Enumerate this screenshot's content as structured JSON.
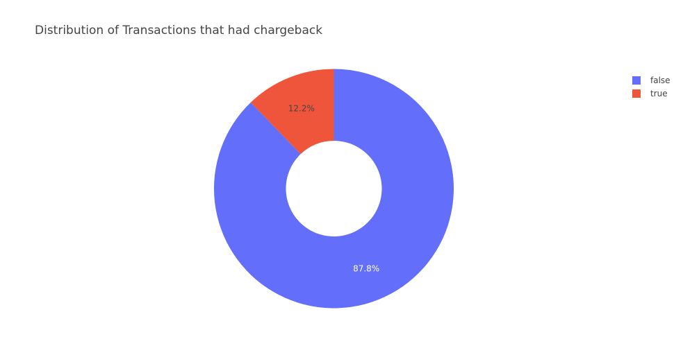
{
  "chart_data": {
    "type": "pie",
    "hole": true,
    "title": "Distribution of Transactions that had chargeback",
    "categories": [
      "false",
      "true"
    ],
    "values": [
      87.8,
      12.2
    ],
    "labels": [
      "87.8%",
      "12.2%"
    ],
    "colors": [
      "#636efa",
      "#ef553b"
    ],
    "label_colors": [
      "#ffffff",
      "#444444"
    ],
    "legend_position": "top-right"
  }
}
